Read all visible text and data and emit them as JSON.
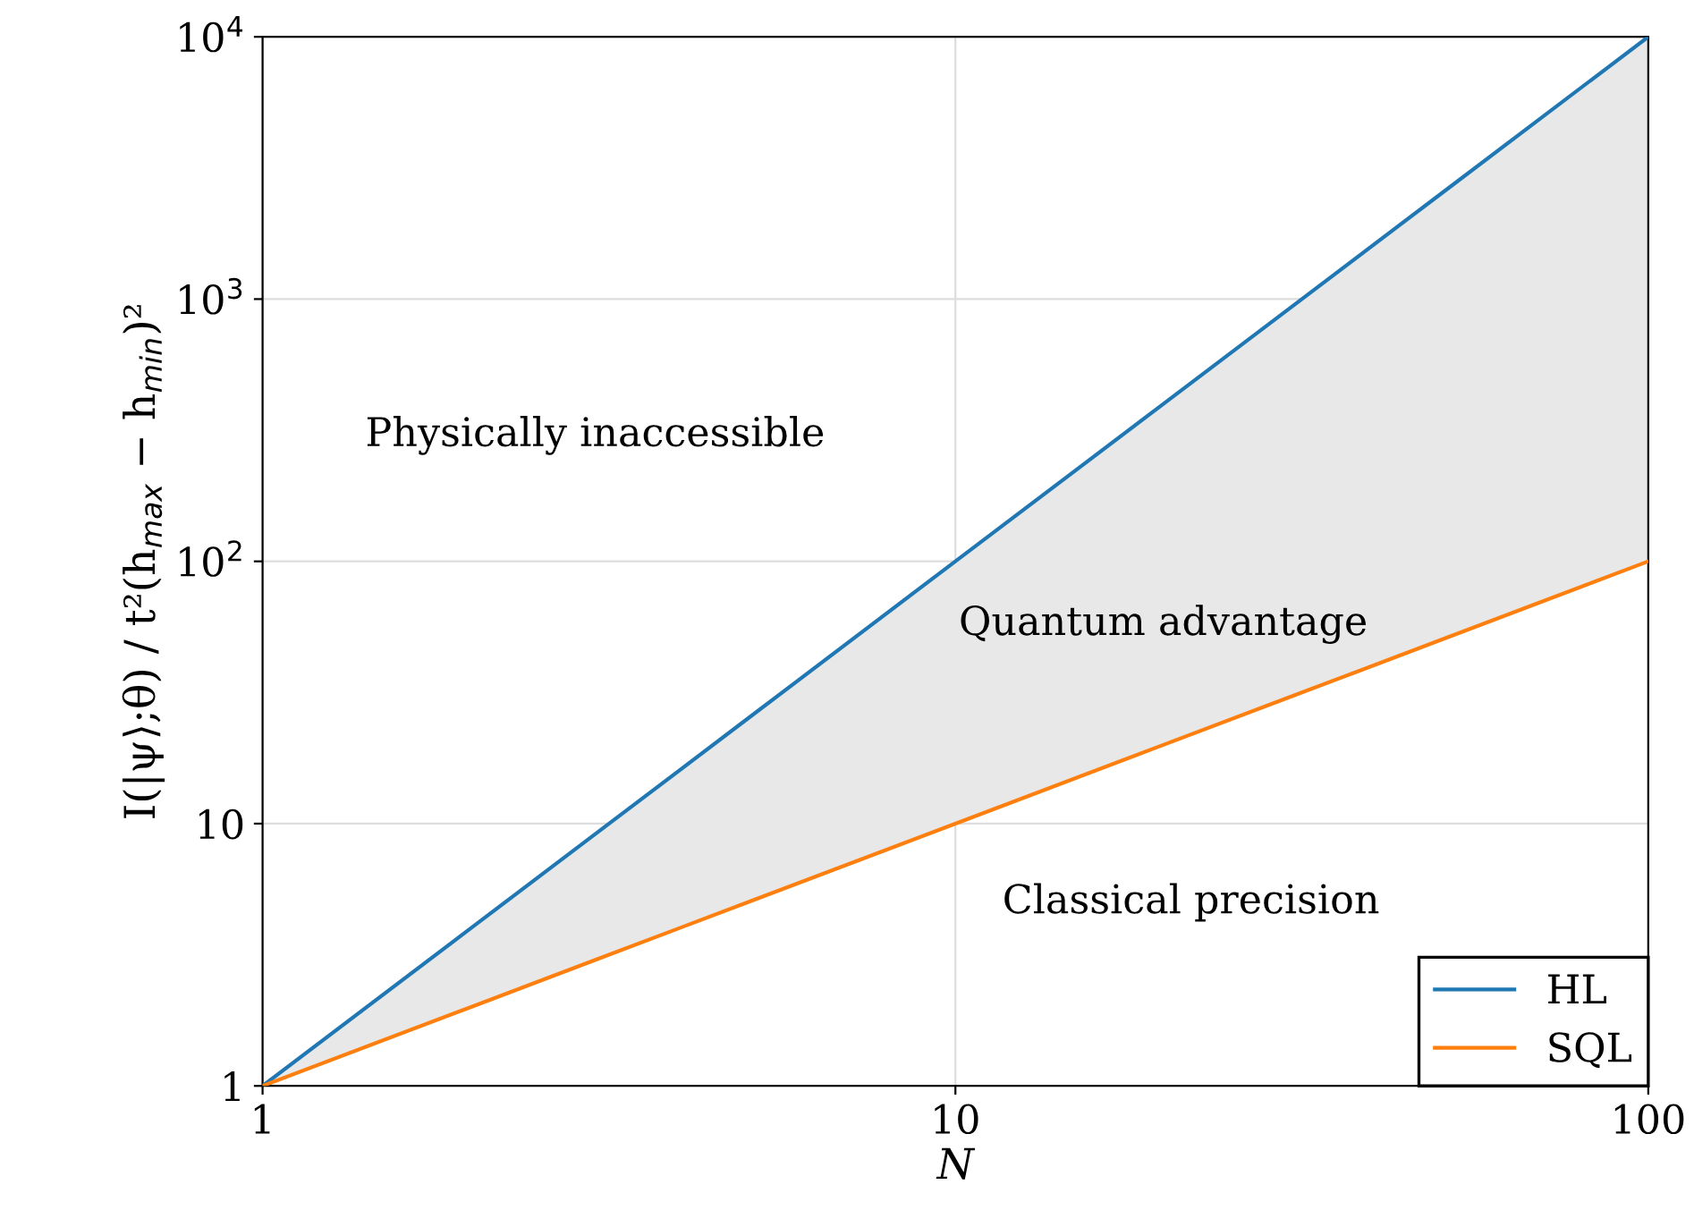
{
  "chart_data": {
    "type": "line",
    "xlabel": "N",
    "ylabel": "I(|ψ⟩;θ) / t²(h$_{max}$ − h$_{min}$)²",
    "x": [
      1,
      2,
      3,
      5,
      10,
      20,
      30,
      50,
      100
    ],
    "series": [
      {
        "name": "HL",
        "color": "#1f77b4",
        "values": [
          1,
          4,
          9,
          25,
          100,
          400,
          900,
          2500,
          10000
        ],
        "lower": [
          1,
          2,
          3,
          5,
          10,
          20,
          30,
          50,
          100
        ],
        "upper": [
          1,
          4,
          9,
          25,
          100,
          400,
          900,
          2500,
          10000
        ]
      },
      {
        "name": "SQL",
        "color": "#ff7f0e",
        "values": [
          1,
          2,
          3,
          5,
          10,
          20,
          30,
          50,
          100
        ]
      }
    ],
    "log": "xy",
    "xlim": [
      1,
      100
    ],
    "xticks": [
      1,
      10,
      100
    ],
    "ylim": [
      1,
      10000
    ],
    "yticks": [
      1,
      10,
      {
        "value": 100,
        "label": "10$^{2}$"
      },
      {
        "value": 1000,
        "label": "10$^{3}$"
      },
      {
        "value": 10000,
        "label": "10$^{4}$"
      }
    ],
    "grid": true,
    "legend": "bottom right",
    "annotations": [
      "Physically inaccessible",
      "Quantum advantage",
      "Classical precision"
    ]
  }
}
